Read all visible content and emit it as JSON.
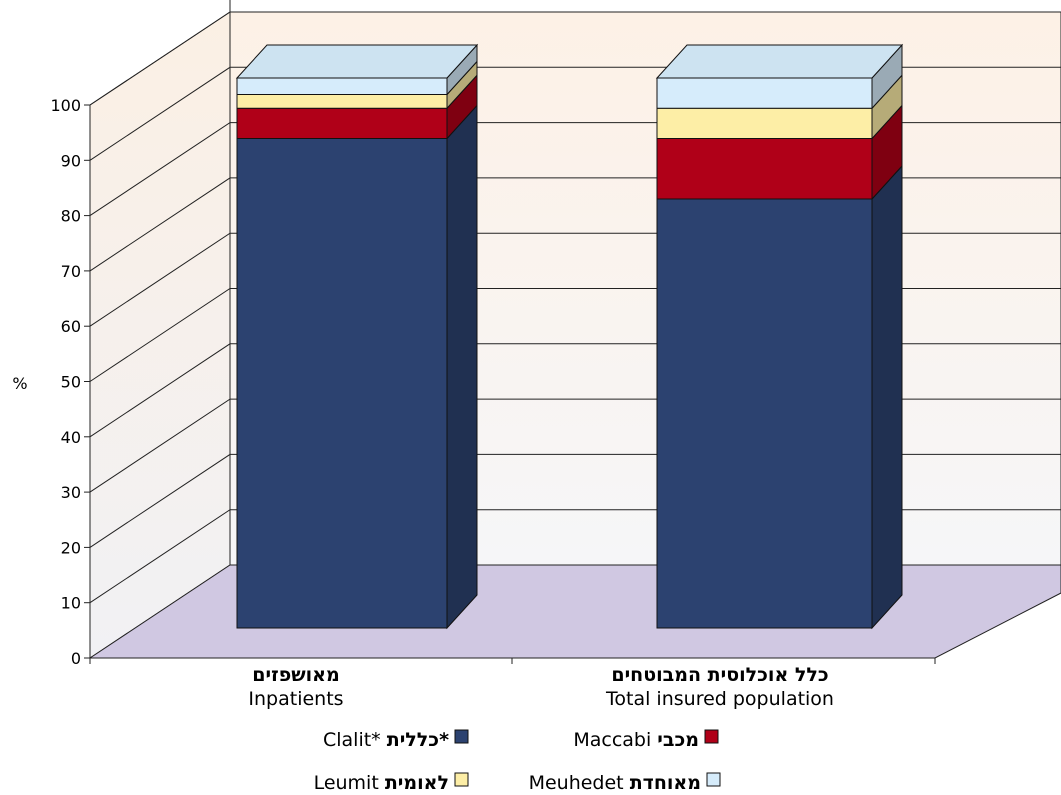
{
  "chart_data": {
    "type": "bar",
    "stacked": true,
    "three_d": true,
    "ylabel": "%",
    "ylim": [
      0,
      100
    ],
    "yticks": [
      0,
      10,
      20,
      30,
      40,
      50,
      60,
      70,
      80,
      90,
      100
    ],
    "grid": true,
    "categories": [
      {
        "he": "מאושפזים",
        "en": "Inpatients"
      },
      {
        "he": "כלל אוכלוסית המבוטחים",
        "en": "Total insured population"
      }
    ],
    "series": [
      {
        "name_he": "כללית*",
        "name_en": "Clalit*",
        "color": "#2c4270",
        "values": [
          89,
          78
        ]
      },
      {
        "name_he": "מכבי",
        "name_en": "Maccabi",
        "color": "#b00018",
        "values": [
          5.5,
          11
        ]
      },
      {
        "name_he": "לאומית",
        "name_en": "Leumit",
        "color": "#fdeea6",
        "values": [
          2.5,
          5.5
        ]
      },
      {
        "name_he": "מאוחדת",
        "name_en": "Meuhedet",
        "color": "#d6ecfb",
        "values": [
          3,
          5.5
        ]
      }
    ],
    "legend_position": "bottom"
  }
}
